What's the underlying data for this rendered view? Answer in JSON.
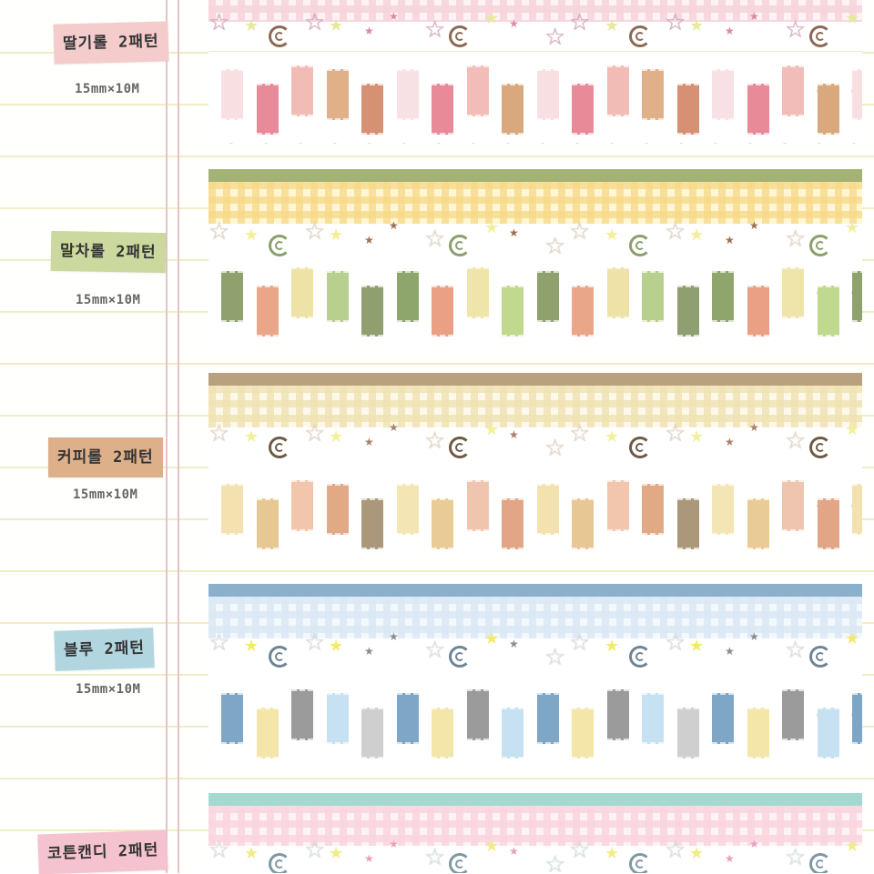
{
  "products": [
    {
      "name": "딸기롤 2패턴",
      "size": "15mm×10M",
      "label_color": "#f4cccc",
      "band_color": "#f3d3d8",
      "gingham_color": "#f6d5dc",
      "motif_colors": {
        "star_big": "#e7a9bd",
        "star_small": "#e6ea9e",
        "swirl": "#8a6a56",
        "mini_star": "#d98aa2"
      },
      "block_colors": [
        "#f7dfe2",
        "#e98a98",
        "#f2bcb6",
        "#e0b089",
        "#d69073",
        "#f8e1e5",
        "#e88a98",
        "#f2bcb8",
        "#d9a87c"
      ]
    },
    {
      "name": "말차롤 2패턴",
      "size": "15mm×10M",
      "label_color": "#cbd89e",
      "band_color": "#a4b276",
      "gingham_color": "#f7d886",
      "motif_colors": {
        "star_big": "#f6ddc6",
        "star_small": "#f2ee9c",
        "swirl": "#8aa06c",
        "mini_star": "#9c7050"
      },
      "block_colors": [
        "#8fa26e",
        "#e9a688",
        "#eee2a6",
        "#b8d08e",
        "#8f9f70",
        "#8ea66c",
        "#e9a084",
        "#efe4aa",
        "#c1d98e"
      ]
    },
    {
      "name": "커피롤 2패턴",
      "size": "15mm×10M",
      "label_color": "#ddb08a",
      "band_color": "#b9a07f",
      "gingham_color": "#efe3b4",
      "motif_colors": {
        "star_big": "#f6dfc3",
        "star_small": "#f2f09a",
        "swirl": "#6f5a45",
        "mini_star": "#a6806a"
      },
      "block_colors": [
        "#f3e1b0",
        "#e7c894",
        "#f1c6ad",
        "#e2a985",
        "#ab987b",
        "#f3e6b4",
        "#e9cc95",
        "#f0c5af",
        "#e2a686"
      ]
    },
    {
      "name": "블루 2패턴",
      "size": "15mm×10M",
      "label_color": "#b2d6e0",
      "band_color": "#8bb0cb",
      "gingham_color": "#dce9f5",
      "motif_colors": {
        "star_big": "#e7e9ee",
        "star_small": "#f2ea6c",
        "swirl": "#6f8595",
        "mini_star": "#8c8c8c"
      },
      "block_colors": [
        "#7ea6c6",
        "#f3e6a8",
        "#9b9b9b",
        "#c6e1f1",
        "#cfcfcf",
        "#7ea6c6",
        "#f3e6a8",
        "#9b9b9b",
        "#c6e1f1"
      ]
    },
    {
      "name": "코튼캔디 2패턴",
      "size": "",
      "label_color": "#f5c3cf",
      "band_color": "#a6d8d2",
      "gingham_color": "#f9d6df",
      "motif_colors": {
        "star_big": "#dcf1ec",
        "star_small": "#f0ec88",
        "swirl": "#7f98a4",
        "mini_star": "#e5a0bc"
      },
      "block_colors": []
    }
  ]
}
